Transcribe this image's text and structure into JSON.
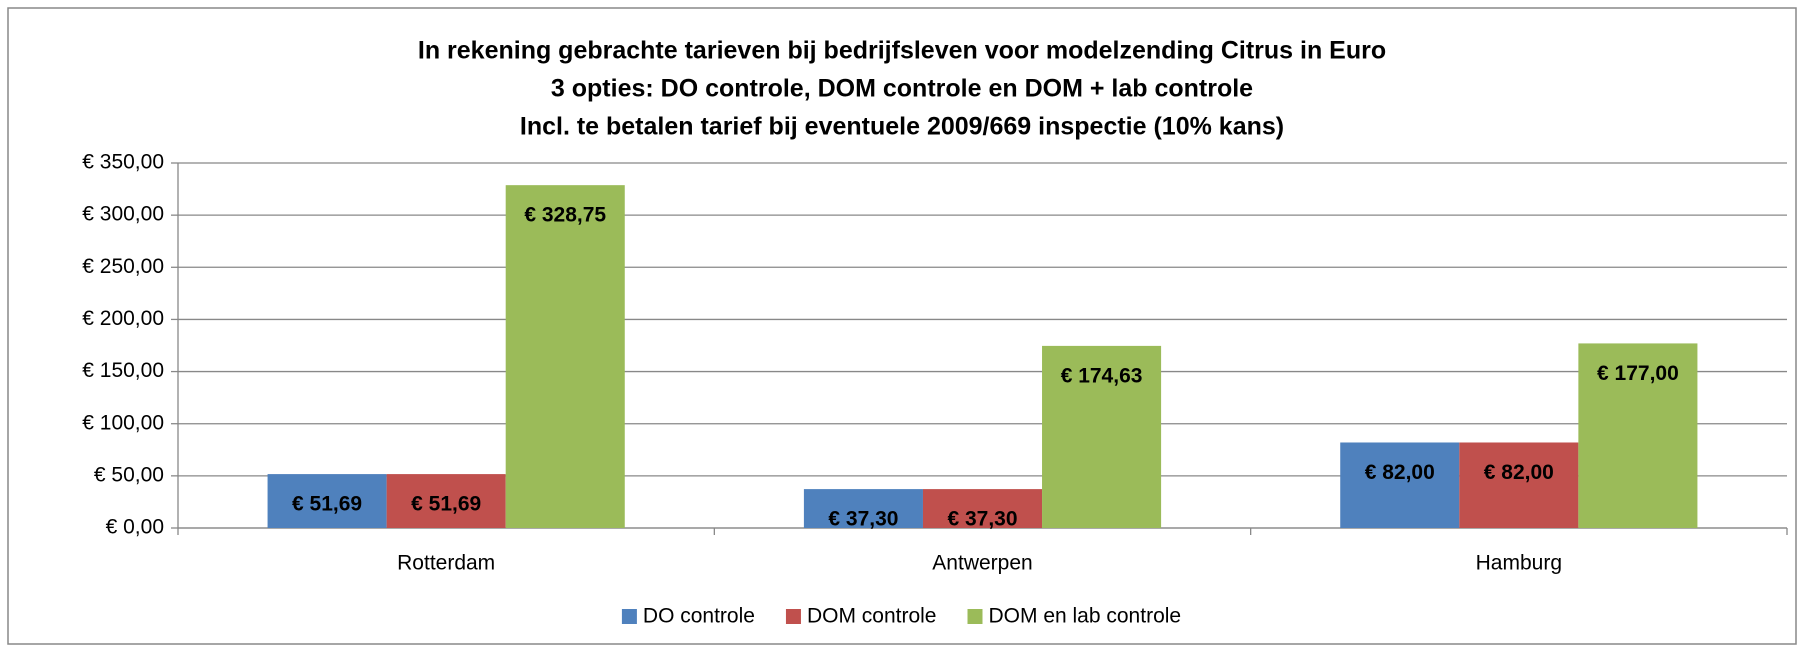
{
  "chart_data": {
    "type": "bar",
    "title": [
      "In rekening gebrachte tarieven bij bedrijfsleven voor modelzending Citrus in Euro",
      "3 opties: DO controle, DOM controle en DOM + lab controle",
      "Incl. te betalen tarief bij eventuele 2009/669 inspectie (10% kans)"
    ],
    "categories": [
      "Rotterdam",
      "Antwerpen",
      "Hamburg"
    ],
    "series": [
      {
        "name": "DO controle",
        "color": "#4f81bd",
        "values": [
          51.69,
          37.3,
          82.0
        ],
        "value_labels": [
          "€ 51,69",
          "€ 37,30",
          "€ 82,00"
        ]
      },
      {
        "name": "DOM controle",
        "color": "#c0504d",
        "values": [
          51.69,
          37.3,
          82.0
        ],
        "value_labels": [
          "€ 51,69",
          "€ 37,30",
          "€ 82,00"
        ]
      },
      {
        "name": "DOM en lab controle",
        "color": "#9bbb59",
        "values": [
          328.75,
          174.63,
          177.0
        ],
        "value_labels": [
          "€ 328,75",
          "€ 174,63",
          "€ 177,00"
        ]
      }
    ],
    "ylim": [
      0,
      350
    ],
    "yticks": [
      {
        "value": 0,
        "label": "€ 0,00"
      },
      {
        "value": 50,
        "label": "€ 50,00"
      },
      {
        "value": 100,
        "label": "€ 100,00"
      },
      {
        "value": 150,
        "label": "€ 150,00"
      },
      {
        "value": 200,
        "label": "€ 200,00"
      },
      {
        "value": 250,
        "label": "€ 250,00"
      },
      {
        "value": 300,
        "label": "€ 300,00"
      },
      {
        "value": 350,
        "label": "€ 350,00"
      }
    ],
    "grid": true,
    "legend": "bottom"
  }
}
